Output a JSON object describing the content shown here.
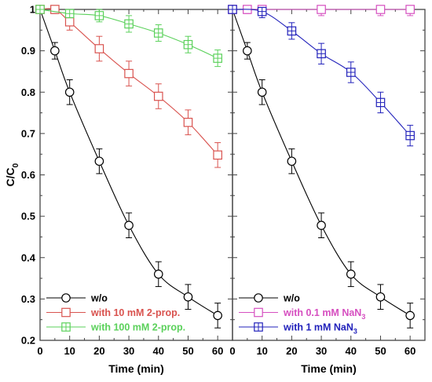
{
  "chart_data": [
    {
      "type": "line",
      "panel": "left",
      "title": "",
      "xlabel": "Time (min)",
      "ylabel": "C/C0",
      "ylabel_main": "C/C",
      "ylabel_sub": "0",
      "xlim": [
        0,
        65
      ],
      "ylim": [
        0.2,
        1.0
      ],
      "xticks": [
        0,
        10,
        20,
        30,
        40,
        50,
        60
      ],
      "yticks": [
        0.2,
        0.3,
        0.4,
        0.5,
        0.6,
        0.7,
        0.8,
        0.9,
        1
      ],
      "ytick_labels": [
        "0.2",
        "0.3",
        "0.4",
        "0.5",
        "0.6",
        "0.7",
        "0.8",
        "0.9",
        "1"
      ],
      "grid": false,
      "legend_position": "bottom-left",
      "series": [
        {
          "name": "w/o",
          "marker": "circle",
          "color": "#000000",
          "x": [
            0,
            5,
            10,
            20,
            30,
            40,
            50,
            60
          ],
          "y": [
            1.0,
            0.9,
            0.8,
            0.633,
            0.478,
            0.36,
            0.305,
            0.26
          ],
          "err": [
            0,
            0.02,
            0.03,
            0.03,
            0.03,
            0.03,
            0.03,
            0.03
          ]
        },
        {
          "name": "with 10 mM 2-prop.",
          "marker": "square",
          "color": "#d9534f",
          "x": [
            0,
            5,
            10,
            20,
            30,
            40,
            50,
            60
          ],
          "y": [
            1.0,
            1.0,
            0.97,
            0.905,
            0.845,
            0.79,
            0.727,
            0.648
          ],
          "err": [
            0,
            0.01,
            0.02,
            0.03,
            0.03,
            0.03,
            0.03,
            0.03
          ]
        },
        {
          "name": "with 100 mM 2-prop.",
          "marker": "square-cross",
          "color": "#5bd15b",
          "x": [
            0,
            10,
            20,
            30,
            40,
            50,
            60
          ],
          "y": [
            1.0,
            0.99,
            0.985,
            0.965,
            0.943,
            0.915,
            0.882
          ],
          "err": [
            0,
            0.01,
            0.015,
            0.02,
            0.02,
            0.02,
            0.02
          ]
        }
      ]
    },
    {
      "type": "line",
      "panel": "right",
      "title": "",
      "xlabel": "Time (min)",
      "xlim": [
        0,
        65
      ],
      "ylim": [
        0.2,
        1.0
      ],
      "xticks": [
        0,
        10,
        20,
        30,
        40,
        50,
        60
      ],
      "grid": false,
      "legend_position": "bottom-left",
      "series": [
        {
          "name": "w/o",
          "marker": "circle",
          "color": "#000000",
          "x": [
            0,
            5,
            10,
            20,
            30,
            40,
            50,
            60
          ],
          "y": [
            1.0,
            0.9,
            0.8,
            0.633,
            0.478,
            0.36,
            0.305,
            0.26
          ],
          "err": [
            0,
            0.02,
            0.03,
            0.03,
            0.03,
            0.03,
            0.03,
            0.03
          ]
        },
        {
          "name": "with 0.1 mM NaN3",
          "name_main": "with 0.1 mM NaN",
          "name_sub": "3",
          "marker": "square",
          "color": "#d64fc0",
          "x": [
            0,
            5,
            10,
            30,
            50,
            60
          ],
          "y": [
            1.0,
            1.0,
            1.0,
            1.0,
            1.0,
            1.0
          ],
          "err": [
            0,
            0.01,
            0.015,
            0.015,
            0.015,
            0.015
          ]
        },
        {
          "name": "with 1 mM NaN3",
          "name_main": "with 1 mM NaN",
          "name_sub": "3",
          "marker": "square-cross",
          "color": "#2222bb",
          "x": [
            0,
            10,
            20,
            30,
            40,
            50,
            60
          ],
          "y": [
            1.0,
            0.995,
            0.948,
            0.893,
            0.848,
            0.775,
            0.695
          ],
          "err": [
            0,
            0.015,
            0.02,
            0.025,
            0.025,
            0.025,
            0.025
          ]
        }
      ]
    }
  ]
}
